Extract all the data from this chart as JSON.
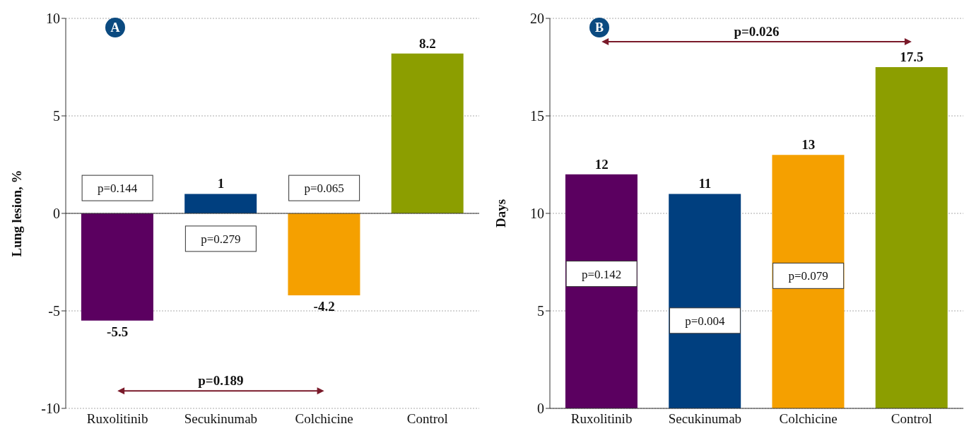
{
  "chart_data": [
    {
      "type": "bar",
      "ylabel": "Lung lesion, %",
      "categories": [
        "Ruxolitinib",
        "Secukinumab",
        "Colchicine",
        "Control"
      ],
      "values": [
        -5.5,
        1,
        -4.2,
        8.2
      ],
      "colors": [
        "#5b0060",
        "#003f7f",
        "#f5a000",
        "#8c9e00"
      ],
      "ylim": [
        -10,
        10
      ],
      "yticks": [
        -10,
        -5,
        0,
        5,
        10
      ],
      "grid": "y",
      "data_labels": true,
      "annotations": [
        "A",
        "p=0.144",
        "p=0.279",
        "p=0.065",
        "p=0.189"
      ]
    },
    {
      "type": "bar",
      "ylabel": "Days",
      "categories": [
        "Ruxolitinib",
        "Secukinumab",
        "Colchicine",
        "Control"
      ],
      "values": [
        12,
        11,
        13,
        17.5
      ],
      "colors": [
        "#5b0060",
        "#003f7f",
        "#f5a000",
        "#8c9e00"
      ],
      "ylim": [
        0,
        20
      ],
      "yticks": [
        0,
        5,
        10,
        15,
        20
      ],
      "grid": "y",
      "data_labels": true,
      "annotations": [
        "B",
        "p=0.142",
        "p=0.004",
        "p=0.079",
        "p=0.026"
      ]
    }
  ]
}
